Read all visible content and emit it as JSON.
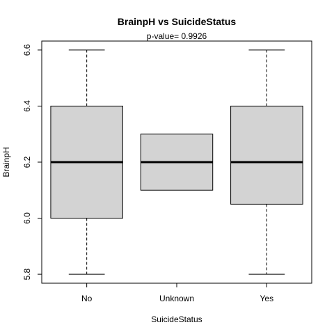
{
  "chart_data": {
    "type": "box",
    "title": "BrainpH  vs  SuicideStatus",
    "subtitle": "p-value= 0.9926",
    "xlabel": "SuicideStatus",
    "ylabel": "BrainpH",
    "categories": [
      "No",
      "Unknown",
      "Yes"
    ],
    "boxes": [
      {
        "category": "No",
        "min": 5.8,
        "q1": 6.0,
        "median": 6.2,
        "q3": 6.4,
        "max": 6.6
      },
      {
        "category": "Unknown",
        "min": 6.1,
        "q1": 6.1,
        "median": 6.2,
        "q3": 6.3,
        "max": 6.3
      },
      {
        "category": "Yes",
        "min": 5.8,
        "q1": 6.05,
        "median": 6.2,
        "q3": 6.4,
        "max": 6.6
      }
    ],
    "yticks": [
      "5.8",
      "6.0",
      "6.2",
      "6.4",
      "6.6"
    ],
    "ylim": [
      5.768,
      6.632
    ],
    "grid": false,
    "box_fill": "#d3d3d3"
  }
}
